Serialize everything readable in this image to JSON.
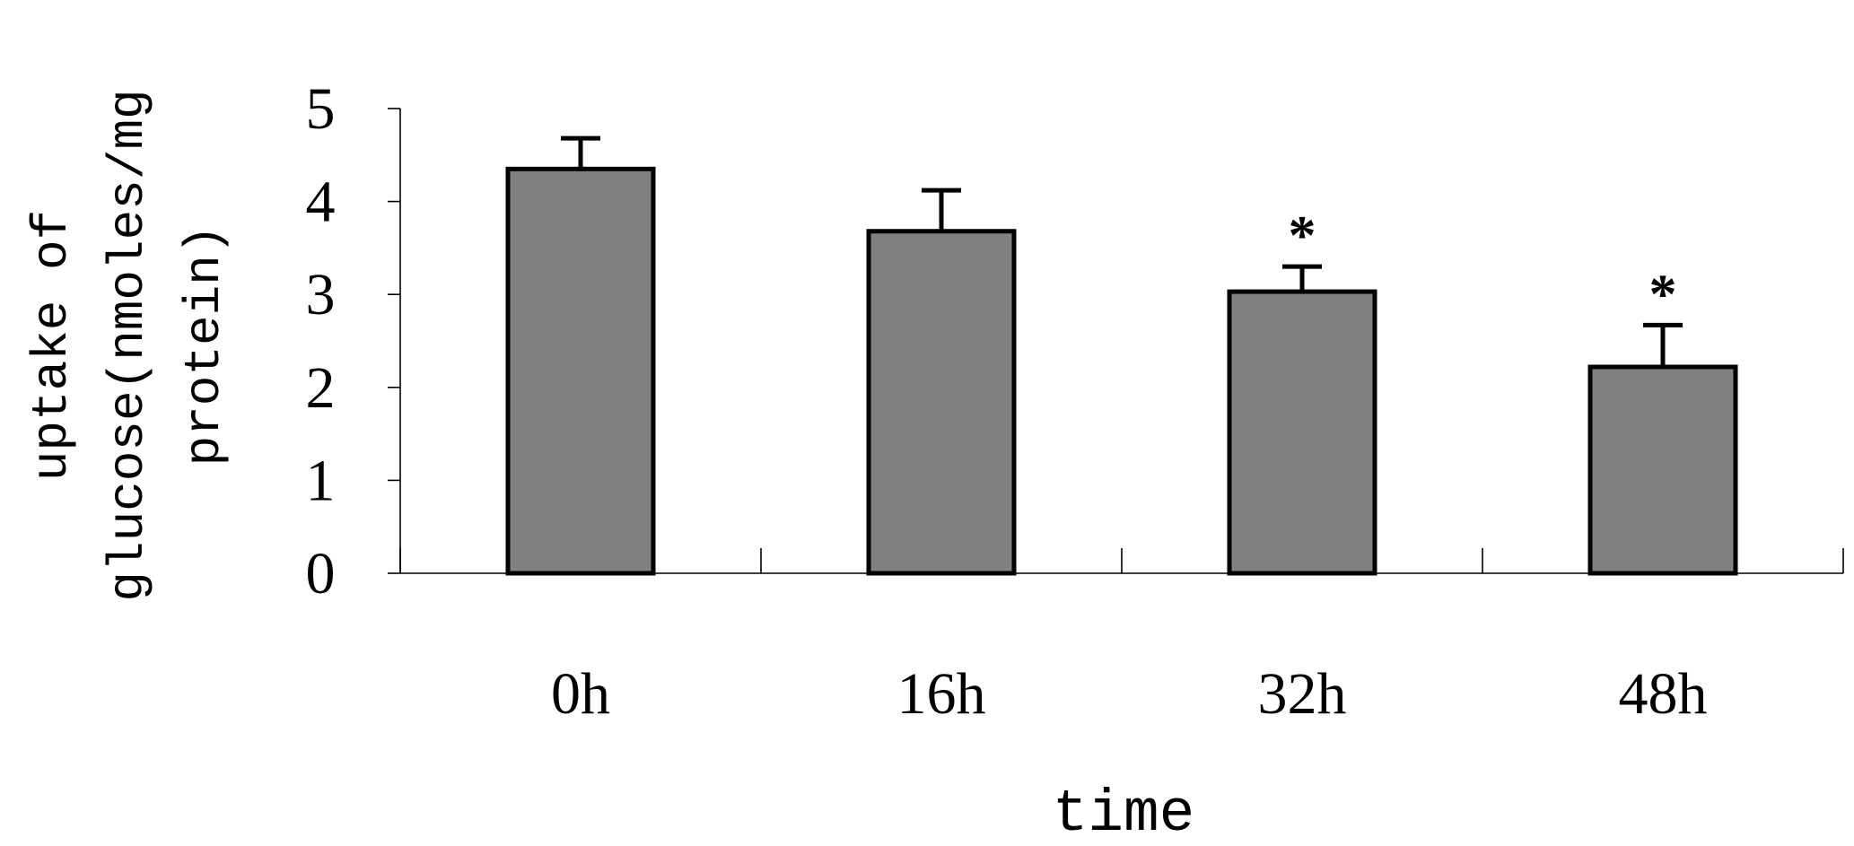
{
  "chart_data": {
    "type": "bar",
    "title": "",
    "xlabel": "time",
    "ylabel_lines": [
      "uptake of",
      "glucose(nmoles/mg",
      "protein)"
    ],
    "categories": [
      "0h",
      "16h",
      "32h",
      "48h"
    ],
    "values": [
      4.35,
      3.68,
      3.03,
      2.22
    ],
    "errors": [
      0.33,
      0.44,
      0.27,
      0.45
    ],
    "annotations": [
      "",
      "",
      "*",
      "*"
    ],
    "y_ticks": [
      0,
      1,
      2,
      3,
      4,
      5
    ],
    "ylim": [
      0,
      5
    ],
    "grid": false,
    "legend": "none",
    "bar_color": "#808080",
    "edge_color": "#000000"
  }
}
